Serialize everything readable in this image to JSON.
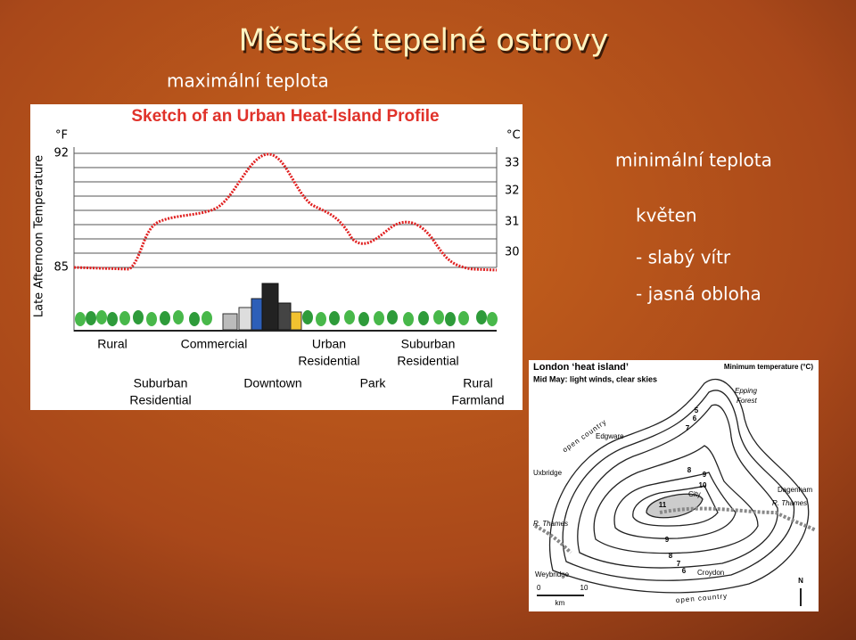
{
  "title": "Městské tepelné ostrovy",
  "labels": {
    "max": "maximální teplota",
    "min": "minimální teplota"
  },
  "notes": [
    "květen",
    "- slabý vítr",
    "- jasná obloha"
  ],
  "profile": {
    "title": "Sketch of an Urban Heat-Island Profile",
    "unit_f": "°F",
    "unit_c": "°C",
    "y_axis": "Late Afternoon Temperature",
    "f_ticks": [
      "92",
      "85"
    ],
    "c_ticks": [
      "33",
      "32",
      "31",
      "30"
    ],
    "zones_top": [
      [
        "Rural"
      ],
      [
        "Commercial"
      ],
      [
        "Urban",
        "Residential"
      ],
      [
        "Suburban",
        "Residential"
      ]
    ],
    "zones_bottom": [
      [
        "Suburban",
        "Residential"
      ],
      [
        "Downtown"
      ],
      [
        "Park"
      ],
      [
        "Rural",
        "Farmland"
      ]
    ]
  },
  "map": {
    "title": "London ‘heat island’",
    "subtitle": "Mid May: light winds, clear skies",
    "legend": "Minimum temperature (°C)",
    "places": [
      "Epping",
      "Forest",
      "Edgware",
      "Uxbridge",
      "City",
      "Dagenham",
      "R. Thames",
      "R. Thames",
      "Weybridge",
      "Croydon"
    ],
    "country": [
      "open country",
      "open country"
    ],
    "isotherms": [
      "5",
      "6",
      "7",
      "8",
      "9",
      "10",
      "11",
      "9",
      "8",
      "7",
      "6"
    ],
    "scale": [
      "0",
      "10",
      "km"
    ],
    "north": "N"
  }
}
